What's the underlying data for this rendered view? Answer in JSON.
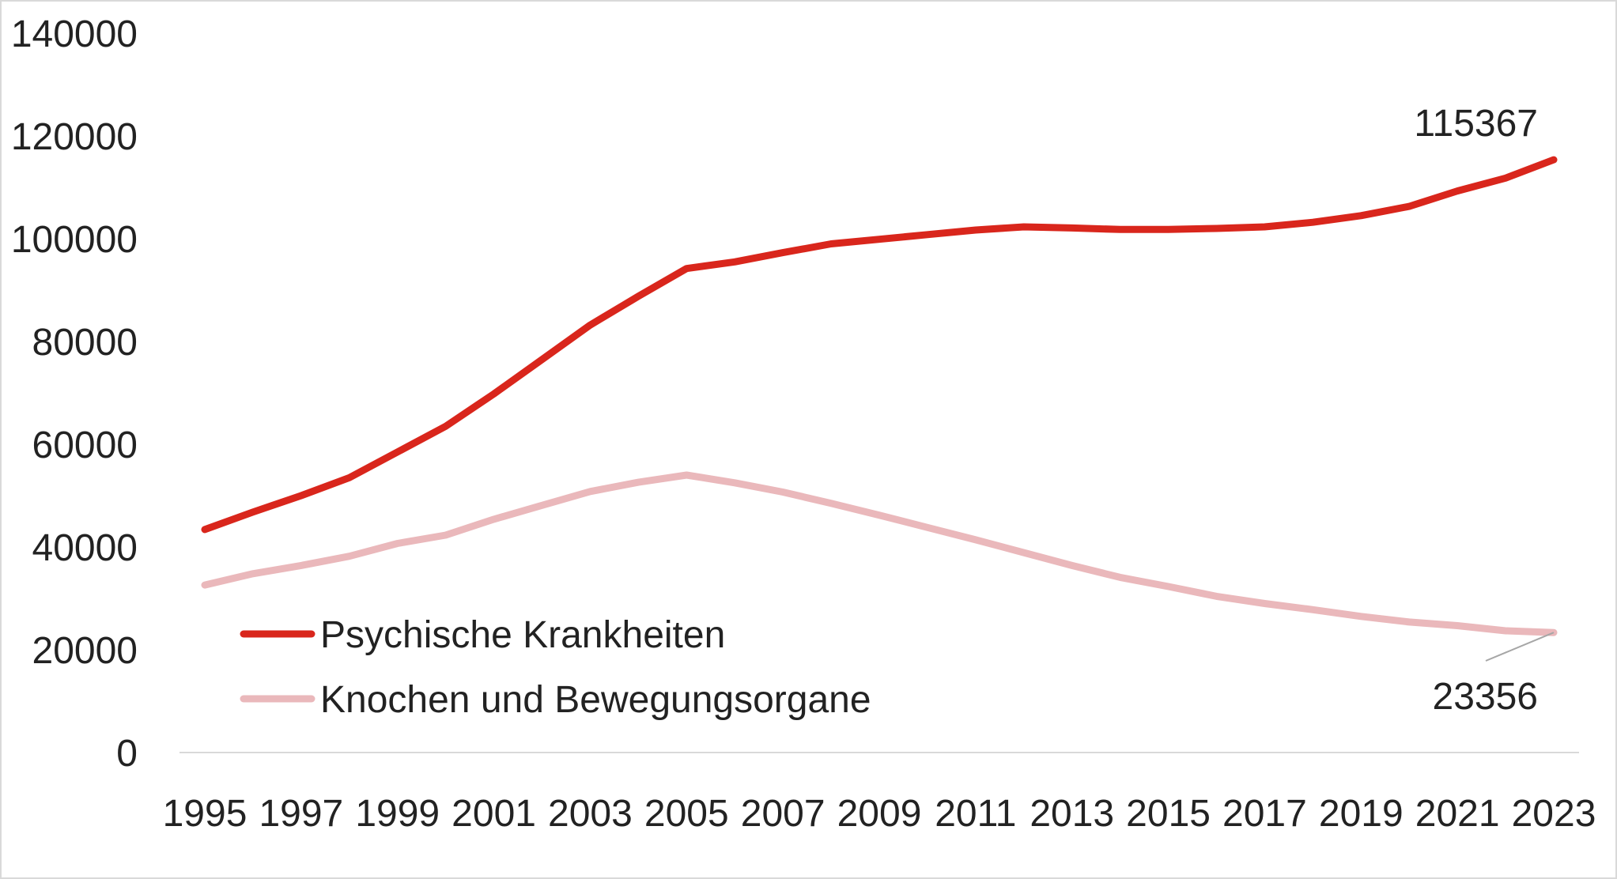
{
  "chart_data": {
    "type": "line",
    "title": "",
    "xlabel": "",
    "ylabel": "",
    "x": [
      1995,
      1996,
      1997,
      1998,
      1999,
      2000,
      2001,
      2002,
      2003,
      2004,
      2005,
      2006,
      2007,
      2008,
      2009,
      2010,
      2011,
      2012,
      2013,
      2014,
      2015,
      2016,
      2017,
      2018,
      2019,
      2020,
      2021,
      2022,
      2023
    ],
    "x_tick_labels": [
      "1995",
      "1997",
      "1999",
      "2001",
      "2003",
      "2005",
      "2007",
      "2009",
      "2011",
      "2013",
      "2015",
      "2017",
      "2019",
      "2021",
      "2023"
    ],
    "y_tick_labels": [
      "0",
      "20000",
      "40000",
      "60000",
      "80000",
      "100000",
      "120000",
      "140000"
    ],
    "ylim": [
      0,
      140000
    ],
    "grid": false,
    "legend_position": "bottom-left",
    "series": [
      {
        "name": "Psychische Krankheiten",
        "color": "#d9261c",
        "values": [
          43400,
          46800,
          50000,
          53500,
          58500,
          63500,
          69800,
          76500,
          83200,
          88800,
          94200,
          95500,
          97300,
          99000,
          99900,
          100800,
          101700,
          102300,
          102100,
          101800,
          101800,
          102000,
          102300,
          103200,
          104500,
          106300,
          109300,
          111800,
          115367
        ]
      },
      {
        "name": "Knochen und Bewegungsorgane",
        "color": "#eab8bb",
        "values": [
          32600,
          34800,
          36400,
          38200,
          40700,
          42300,
          45400,
          48100,
          50800,
          52600,
          54000,
          52500,
          50700,
          48500,
          46200,
          43800,
          41400,
          38900,
          36400,
          34100,
          32300,
          30400,
          29000,
          27800,
          26500,
          25400,
          24700,
          23700,
          23356
        ]
      }
    ],
    "annotations": [
      {
        "series": "Psychische Krankheiten",
        "text": "115367"
      },
      {
        "series": "Knochen und Bewegungsorgane",
        "text": "23356"
      }
    ]
  }
}
